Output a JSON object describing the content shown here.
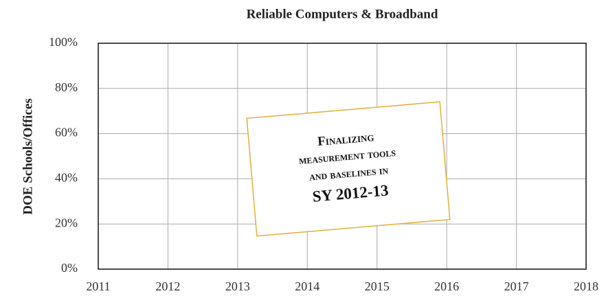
{
  "chart_data": {
    "type": "line",
    "title": "Reliable Computers & Broadband",
    "y_label": "DOE Schools/Offices",
    "xlim": [
      2011,
      2018
    ],
    "xticks": [
      2011,
      2012,
      2013,
      2014,
      2015,
      2016,
      2017,
      2018
    ],
    "ylim": [
      0,
      100
    ],
    "yticks": [
      {
        "value": 0,
        "label": "0%"
      },
      {
        "value": 20,
        "label": "20%"
      },
      {
        "value": 40,
        "label": "40%"
      },
      {
        "value": 60,
        "label": "60%"
      },
      {
        "value": 80,
        "label": "80%"
      },
      {
        "value": 100,
        "label": "100%"
      }
    ],
    "grid": true,
    "annotation": {
      "lines": [
        "Finalizing",
        "measurement tools",
        "and baselines in",
        "SY 2012-13"
      ]
    }
  }
}
